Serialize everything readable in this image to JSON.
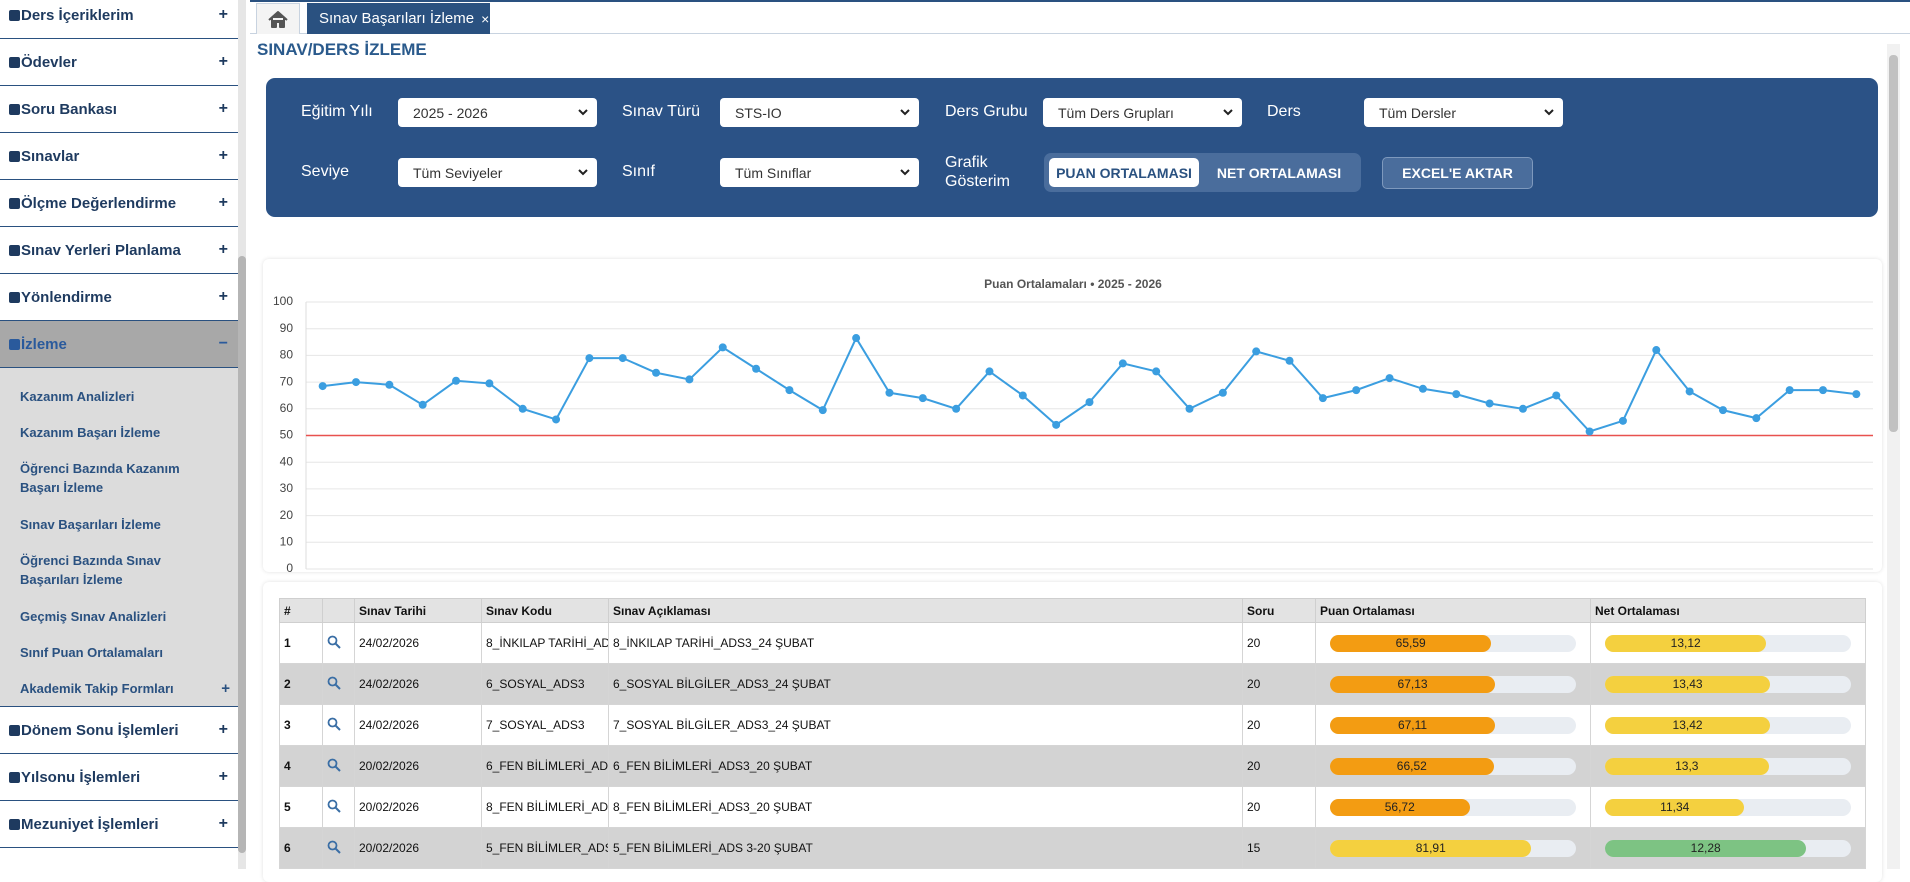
{
  "sidebar": {
    "items": [
      {
        "label": "Ders İçeriklerim",
        "toggle": "+"
      },
      {
        "label": "Ödevler",
        "toggle": "+"
      },
      {
        "label": "Soru Bankası",
        "toggle": "+"
      },
      {
        "label": "Sınavlar",
        "toggle": "+"
      },
      {
        "label": "Ölçme Değerlendirme",
        "toggle": "+"
      },
      {
        "label": "Sınav Yerleri Planlama",
        "toggle": "+"
      },
      {
        "label": "Yönlendirme",
        "toggle": "+"
      },
      {
        "label": "İzleme",
        "toggle": "−",
        "active": true,
        "children": [
          {
            "label": "Kazanım Analizleri"
          },
          {
            "label": "Kazanım Başarı İzleme"
          },
          {
            "label": "Öğrenci Bazında Kazanım Başarı İzleme"
          },
          {
            "label": "Sınav Başarıları İzleme"
          },
          {
            "label": "Öğrenci Bazında Sınav Başarıları İzleme"
          },
          {
            "label": "Geçmiş Sınav Analizleri"
          },
          {
            "label": "Sınıf Puan Ortalamaları"
          },
          {
            "label": "Akademik Takip Formları",
            "toggle": "+"
          }
        ]
      },
      {
        "label": "Dönem Sonu İşlemleri",
        "toggle": "+"
      },
      {
        "label": "Yılsonu İşlemleri",
        "toggle": "+"
      },
      {
        "label": "Mezuniyet İşlemleri",
        "toggle": "+"
      }
    ]
  },
  "tabs": {
    "active": "Sınav Başarıları İzleme",
    "close": "×"
  },
  "page_title": "SINAV/DERS İZLEME",
  "filters": {
    "fields": [
      {
        "label": "Eğitim Yılı",
        "value": "2025 - 2026"
      },
      {
        "label": "Sınav Türü",
        "value": "STS-IO"
      },
      {
        "label": "Ders Grubu",
        "value": "Tüm Ders Grupları"
      },
      {
        "label": "Ders",
        "value": "Tüm Dersler"
      },
      {
        "label": "Seviye",
        "value": "Tüm Seviyeler"
      },
      {
        "label": "Sınıf",
        "value": "Tüm Sınıflar"
      }
    ],
    "chart_mode": {
      "label": "Grafik Gösterim",
      "options": [
        "PUAN ORTALAMASI",
        "NET ORTALAMASI"
      ],
      "selected": 0
    },
    "export": "EXCEL'E AKTAR"
  },
  "chart_data": {
    "type": "line",
    "title": "Puan Ortalamaları • 2025 - 2026",
    "categories": [
      null,
      null,
      null,
      null,
      null,
      null,
      null,
      null,
      null,
      null,
      null,
      null,
      null,
      null,
      null,
      null,
      null,
      null,
      null,
      null,
      null,
      null,
      null,
      null,
      null,
      null,
      null,
      null,
      null,
      null,
      null,
      null,
      null,
      null,
      null,
      null,
      null,
      null,
      null,
      null,
      null,
      null,
      null,
      null,
      null,
      null,
      null
    ],
    "series": [
      {
        "color": "#3b9ee0",
        "values": [
          68.5,
          70,
          69,
          61.5,
          70.5,
          69.5,
          60,
          56,
          79,
          79,
          73.5,
          71,
          83,
          75,
          67,
          59.5,
          86.5,
          66,
          64,
          60,
          74,
          65,
          54,
          62.5,
          77,
          74,
          60,
          66,
          81.5,
          78,
          64,
          67,
          71.5,
          67.5,
          65.5,
          62,
          60,
          65,
          51.5,
          55.5,
          82,
          66.5,
          59.5,
          56.5,
          67,
          67,
          65.5
        ]
      }
    ],
    "reference_line": {
      "value": 50,
      "color": "#e8514f"
    },
    "ylim": [
      0,
      100
    ],
    "yticks": [
      0,
      10,
      20,
      30,
      40,
      50,
      60,
      70,
      80,
      90,
      100
    ],
    "grid": true
  },
  "table": {
    "columns": [
      "#",
      "Sınav Tarihi",
      "Sınav Kodu",
      "Sınav Açıklaması",
      "Soru",
      "Puan Ortalaması",
      "Net Ortalaması"
    ],
    "rows": [
      {
        "no": "1",
        "date": "24/02/2026",
        "code": "8_İNKILAP TARİHİ_AD",
        "desc": "8_İNKILAP TARİHİ_ADS3_24 ŞUBAT",
        "soru": 20,
        "puan": {
          "value": 65.59,
          "label": "65,59"
        },
        "net": {
          "value": 13.12,
          "label": "13,12"
        },
        "puan_color": "#f39c12",
        "net_color": "#f4d03f"
      },
      {
        "no": "2",
        "date": "24/02/2026",
        "code": "6_SOSYAL_ADS3",
        "desc": "6_SOSYAL BİLGİLER_ADS3_24 ŞUBAT",
        "soru": 20,
        "puan": {
          "value": 67.13,
          "label": "67,13"
        },
        "net": {
          "value": 13.43,
          "label": "13,43"
        },
        "puan_color": "#f39c12",
        "net_color": "#f4d03f"
      },
      {
        "no": "3",
        "date": "24/02/2026",
        "code": "7_SOSYAL_ADS3",
        "desc": "7_SOSYAL BİLGİLER_ADS3_24 ŞUBAT",
        "soru": 20,
        "puan": {
          "value": 67.11,
          "label": "67,11"
        },
        "net": {
          "value": 13.42,
          "label": "13,42"
        },
        "puan_color": "#f39c12",
        "net_color": "#f4d03f"
      },
      {
        "no": "4",
        "date": "20/02/2026",
        "code": "6_FEN BİLİMLERİ_AD",
        "desc": "6_FEN BİLİMLERİ_ADS3_20 ŞUBAT",
        "soru": 20,
        "puan": {
          "value": 66.52,
          "label": "66,52"
        },
        "net": {
          "value": 13.3,
          "label": "13,3"
        },
        "puan_color": "#f39c12",
        "net_color": "#f4d03f"
      },
      {
        "no": "5",
        "date": "20/02/2026",
        "code": "8_FEN BİLİMLERİ_AD",
        "desc": "8_FEN BİLİMLERİ_ADS3_20 ŞUBAT",
        "soru": 20,
        "puan": {
          "value": 56.72,
          "label": "56,72"
        },
        "net": {
          "value": 11.34,
          "label": "11,34"
        },
        "puan_color": "#f39c12",
        "net_color": "#f4d03f"
      },
      {
        "no": "6",
        "date": "20/02/2026",
        "code": "5_FEN BİLİMLER_ADS",
        "desc": "5_FEN BİLİMLERİ_ADS 3-20 ŞUBAT",
        "soru": 15,
        "puan": {
          "value": 81.91,
          "label": "81,91"
        },
        "net": {
          "value": 12.28,
          "label": "12,28"
        },
        "puan_color": "#f4d03f",
        "net_color": "#7dc383"
      }
    ]
  }
}
